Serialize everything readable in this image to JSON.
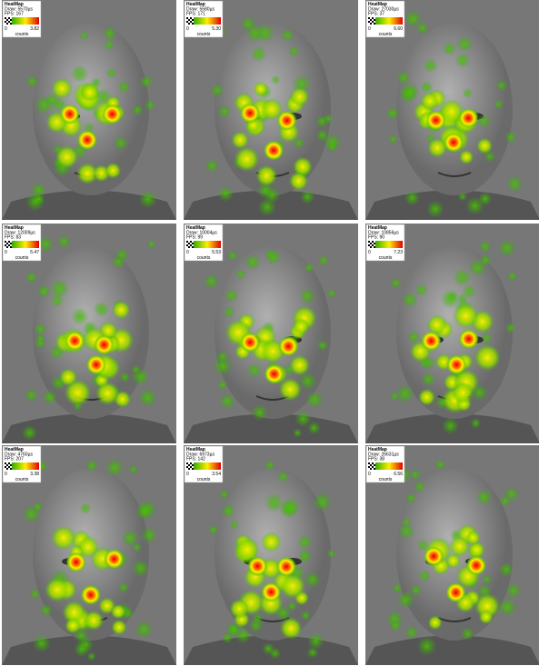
{
  "panels": [
    {
      "title": "HeatMap",
      "draw": "Draw: 5570µs",
      "fps": "FPS: 167",
      "min": "0",
      "max": "3.82",
      "unit": "counts"
    },
    {
      "title": "HeatMap",
      "draw": "Draw: 5580µs",
      "fps": "FPS: 171",
      "min": "0",
      "max": "5.30",
      "unit": "counts"
    },
    {
      "title": "HeatMap",
      "draw": "Draw: 27030µs",
      "fps": "FPS: 37",
      "min": "0",
      "max": "6.60",
      "unit": "counts"
    },
    {
      "title": "HeatMap",
      "draw": "Draw: 12009µs",
      "fps": "FPS: 83",
      "min": "0",
      "max": "5.47",
      "unit": "counts"
    },
    {
      "title": "HeatMap",
      "draw": "Draw: 10004µs",
      "fps": "FPS: 99",
      "min": "0",
      "max": "5.53",
      "unit": "counts"
    },
    {
      "title": "HeatMap",
      "draw": "Draw: 10856µs",
      "fps": "FPS: 90",
      "min": "0",
      "max": "7.23",
      "unit": "counts"
    },
    {
      "title": "HeatMap",
      "draw": "Draw: 4760µs",
      "fps": "FPS: 207",
      "min": "0",
      "max": "3.38",
      "unit": "counts"
    },
    {
      "title": "HeatMap",
      "draw": "Draw: 6973µs",
      "fps": "FPS: 142",
      "min": "0",
      "max": "3.54",
      "unit": "counts"
    },
    {
      "title": "HeatMap",
      "draw": "Draw: 26631µs",
      "fps": "FPS: 38",
      "min": "0",
      "max": "6.56",
      "unit": "counts"
    }
  ]
}
